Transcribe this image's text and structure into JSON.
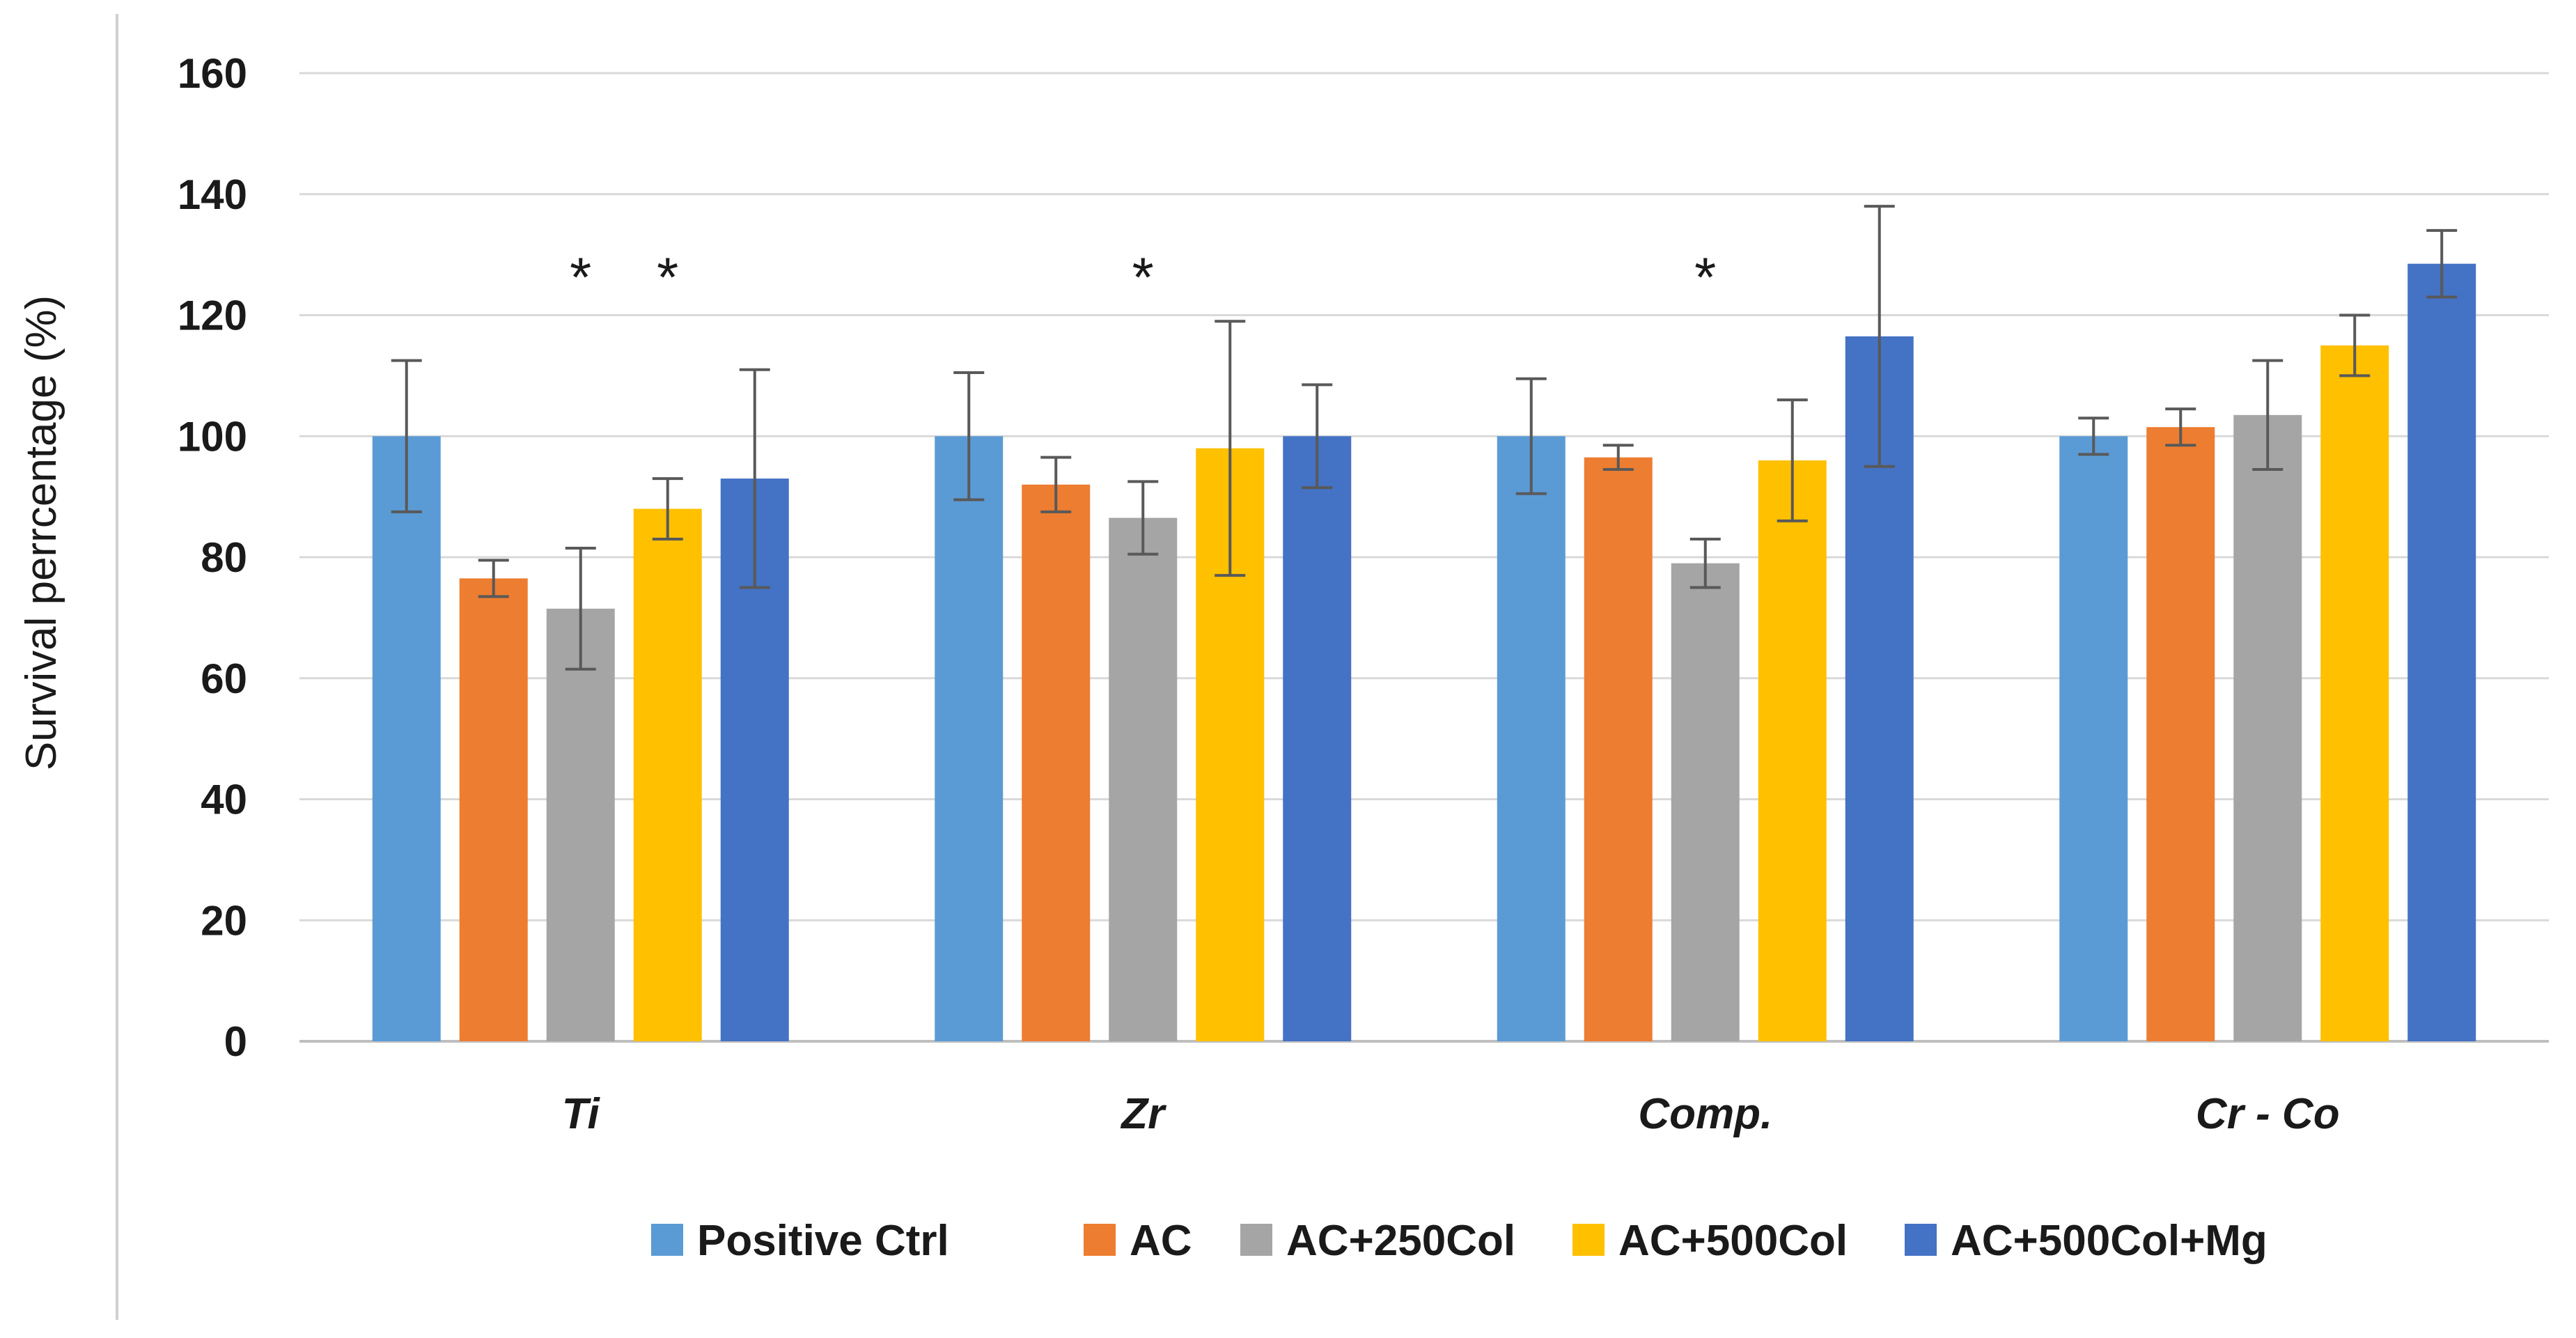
{
  "chart_data": {
    "type": "bar",
    "title": "",
    "xlabel": "",
    "ylabel": "Survival perrcentage (%)",
    "ylim": [
      0,
      160
    ],
    "yticks": [
      0,
      20,
      40,
      60,
      80,
      100,
      120,
      140,
      160
    ],
    "grid": true,
    "legend_position": "bottom",
    "categories": [
      "Ti",
      "Zr",
      "Comp.",
      "Cr - Co"
    ],
    "series": [
      {
        "name": "Positive Ctrl",
        "color": "#5B9BD5",
        "values": [
          100,
          100,
          100,
          100
        ],
        "errors": [
          12.5,
          10.5,
          9.5,
          3
        ]
      },
      {
        "name": "AC",
        "color": "#ED7D31",
        "values": [
          76.5,
          92,
          96.5,
          101.5
        ],
        "errors": [
          3,
          4.5,
          2,
          3
        ]
      },
      {
        "name": "AC+250Col",
        "color": "#A5A5A5",
        "values": [
          71.5,
          86.5,
          79,
          103.5
        ],
        "errors": [
          10,
          6,
          4,
          9
        ]
      },
      {
        "name": "AC+500Col",
        "color": "#FFC000",
        "values": [
          88,
          98,
          96,
          115
        ],
        "errors": [
          5,
          21,
          10,
          5
        ]
      },
      {
        "name": "AC+500Col+Mg",
        "color": "#4472C4",
        "values": [
          93,
          100,
          116.5,
          128.5
        ],
        "errors": [
          18,
          8.5,
          21.5,
          5.5
        ]
      }
    ],
    "annotations": [
      {
        "text": "*",
        "category": "Ti",
        "series": "AC+250Col",
        "y": 130
      },
      {
        "text": "*",
        "category": "Ti",
        "series": "AC+500Col",
        "y": 130
      },
      {
        "text": "*",
        "category": "Zr",
        "series": "AC+250Col",
        "y": 130
      },
      {
        "text": "*",
        "category": "Comp.",
        "series": "AC+250Col",
        "y": 130
      }
    ]
  }
}
